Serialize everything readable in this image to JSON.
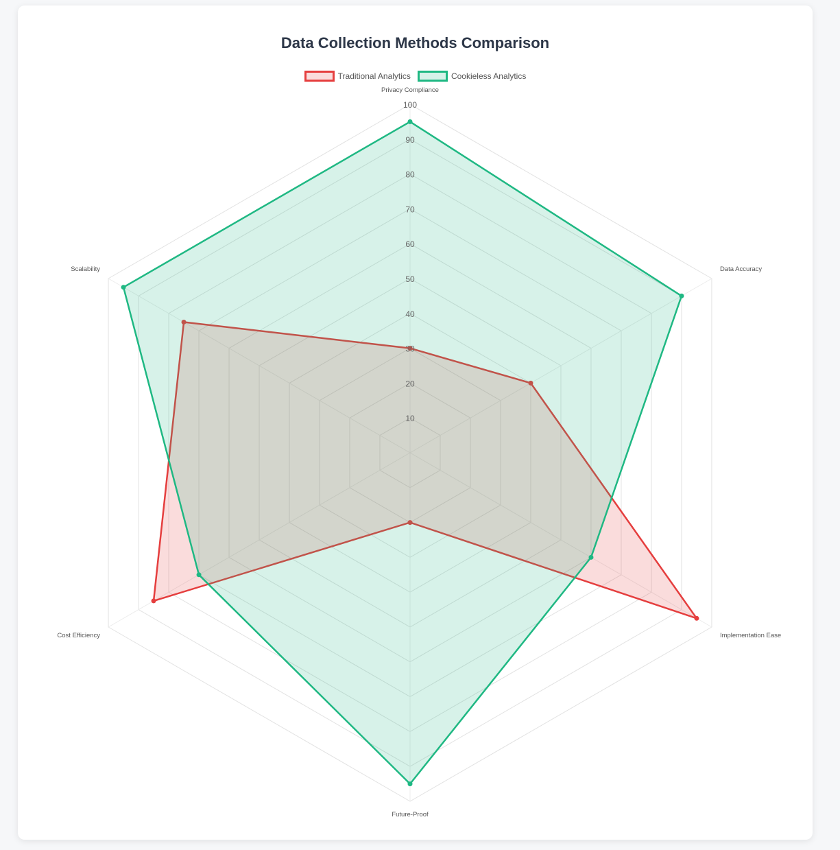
{
  "chart_data": {
    "type": "radar",
    "title": "Data Collection Methods Comparison",
    "categories": [
      "Privacy Compliance",
      "Data Accuracy",
      "Implementation Ease",
      "Future-Proof",
      "Cost Efficiency",
      "Scalability"
    ],
    "series": [
      {
        "name": "Traditional Analytics",
        "values": [
          30,
          40,
          95,
          20,
          85,
          75
        ],
        "color": "#e53e3e",
        "fill": "rgba(229,62,62,0.18)"
      },
      {
        "name": "Cookieless Analytics",
        "values": [
          95,
          90,
          60,
          95,
          70,
          95
        ],
        "color": "#1fb883",
        "fill": "rgba(31,184,131,0.18)"
      }
    ],
    "r_range": [
      0,
      100
    ],
    "r_ticks": [
      10,
      20,
      30,
      40,
      50,
      60,
      70,
      80,
      90,
      100
    ],
    "legend_position": "top",
    "grid": true
  }
}
